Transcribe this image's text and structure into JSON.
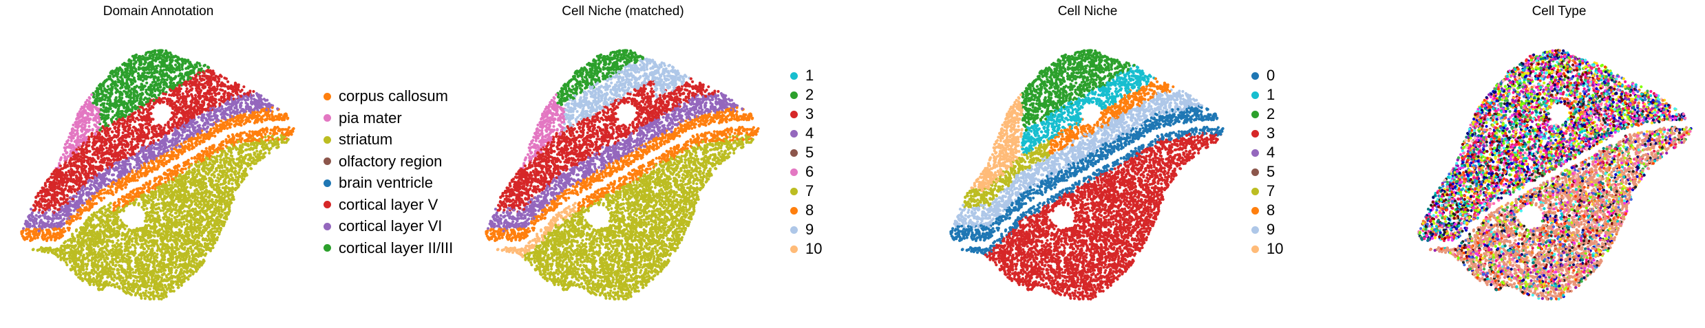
{
  "chart_data": [
    {
      "type": "scatter",
      "title": "Domain Annotation",
      "xlabel": "",
      "ylabel": "",
      "grid": false,
      "legend_position": "right",
      "series": [
        {
          "name": "corpus callosum",
          "color": "#ff7f0e"
        },
        {
          "name": "pia mater",
          "color": "#e377c2"
        },
        {
          "name": "striatum",
          "color": "#bcbd22"
        },
        {
          "name": "olfactory region",
          "color": "#8c564b"
        },
        {
          "name": "brain ventricle",
          "color": "#1f77b4"
        },
        {
          "name": "cortical layer V",
          "color": "#d62728"
        },
        {
          "name": "cortical layer VI",
          "color": "#9467bd"
        },
        {
          "name": "cortical layer II/III",
          "color": "#2ca02c"
        }
      ]
    },
    {
      "type": "scatter",
      "title": "Cell Niche (matched)",
      "xlabel": "",
      "ylabel": "",
      "grid": false,
      "legend_position": "right",
      "series": [
        {
          "name": "1",
          "color": "#17becf"
        },
        {
          "name": "2",
          "color": "#2ca02c"
        },
        {
          "name": "3",
          "color": "#d62728"
        },
        {
          "name": "4",
          "color": "#9467bd"
        },
        {
          "name": "5",
          "color": "#8c564b"
        },
        {
          "name": "6",
          "color": "#e377c2"
        },
        {
          "name": "7",
          "color": "#bcbd22"
        },
        {
          "name": "8",
          "color": "#ff7f0e"
        },
        {
          "name": "9",
          "color": "#aec7e8"
        },
        {
          "name": "10",
          "color": "#ffbb78"
        }
      ]
    },
    {
      "type": "scatter",
      "title": "Cell Niche",
      "xlabel": "",
      "ylabel": "",
      "grid": false,
      "legend_position": "right",
      "series": [
        {
          "name": "0",
          "color": "#1f77b4"
        },
        {
          "name": "1",
          "color": "#17becf"
        },
        {
          "name": "2",
          "color": "#2ca02c"
        },
        {
          "name": "3",
          "color": "#d62728"
        },
        {
          "name": "4",
          "color": "#9467bd"
        },
        {
          "name": "5",
          "color": "#8c564b"
        },
        {
          "name": "7",
          "color": "#bcbd22"
        },
        {
          "name": "8",
          "color": "#ff7f0e"
        },
        {
          "name": "9",
          "color": "#aec7e8"
        },
        {
          "name": "10",
          "color": "#ffbb78"
        }
      ]
    },
    {
      "type": "scatter",
      "title": "Cell Type",
      "xlabel": "",
      "ylabel": "",
      "grid": false,
      "legend_position": "none",
      "series": []
    }
  ]
}
